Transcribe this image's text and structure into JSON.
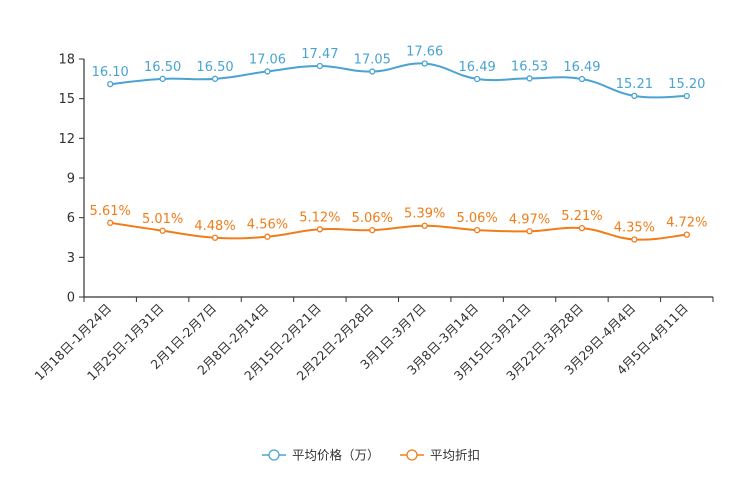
{
  "chart_data": {
    "type": "line",
    "categories": [
      "1月18日-1月24日",
      "1月25日-1月31日",
      "2月1日-2月7日",
      "2月8日-2月14日",
      "2月15日-2月21日",
      "2月22日-2月28日",
      "3月1日-3月7日",
      "3月8日-3月14日",
      "3月15日-3月21日",
      "3月22日-3月28日",
      "3月29日-4月4日",
      "4月5日-4月11日"
    ],
    "series": [
      {
        "name": "平均价格（万）",
        "color": "#4aa3d3",
        "values": [
          16.1,
          16.5,
          16.5,
          17.06,
          17.47,
          17.05,
          17.66,
          16.49,
          16.53,
          16.49,
          15.21,
          15.2
        ],
        "labels": [
          "16.10",
          "16.50",
          "16.50",
          "17.06",
          "17.47",
          "17.05",
          "17.66",
          "16.49",
          "16.53",
          "16.49",
          "15.21",
          "15.20"
        ]
      },
      {
        "name": "平均折扣",
        "color": "#f07d1a",
        "values": [
          5.61,
          5.01,
          4.48,
          4.56,
          5.12,
          5.06,
          5.39,
          5.06,
          4.97,
          5.21,
          4.35,
          4.72
        ],
        "labels": [
          "5.61%",
          "5.01%",
          "4.48%",
          "4.56%",
          "5.12%",
          "5.06%",
          "5.39%",
          "5.06%",
          "4.97%",
          "5.21%",
          "4.35%",
          "4.72%"
        ]
      }
    ],
    "yticks": [
      0,
      3,
      6,
      9,
      12,
      15,
      18
    ],
    "ylim": [
      0,
      18
    ],
    "title": "",
    "xlabel": "",
    "ylabel": "",
    "legend": "bottom-center"
  }
}
